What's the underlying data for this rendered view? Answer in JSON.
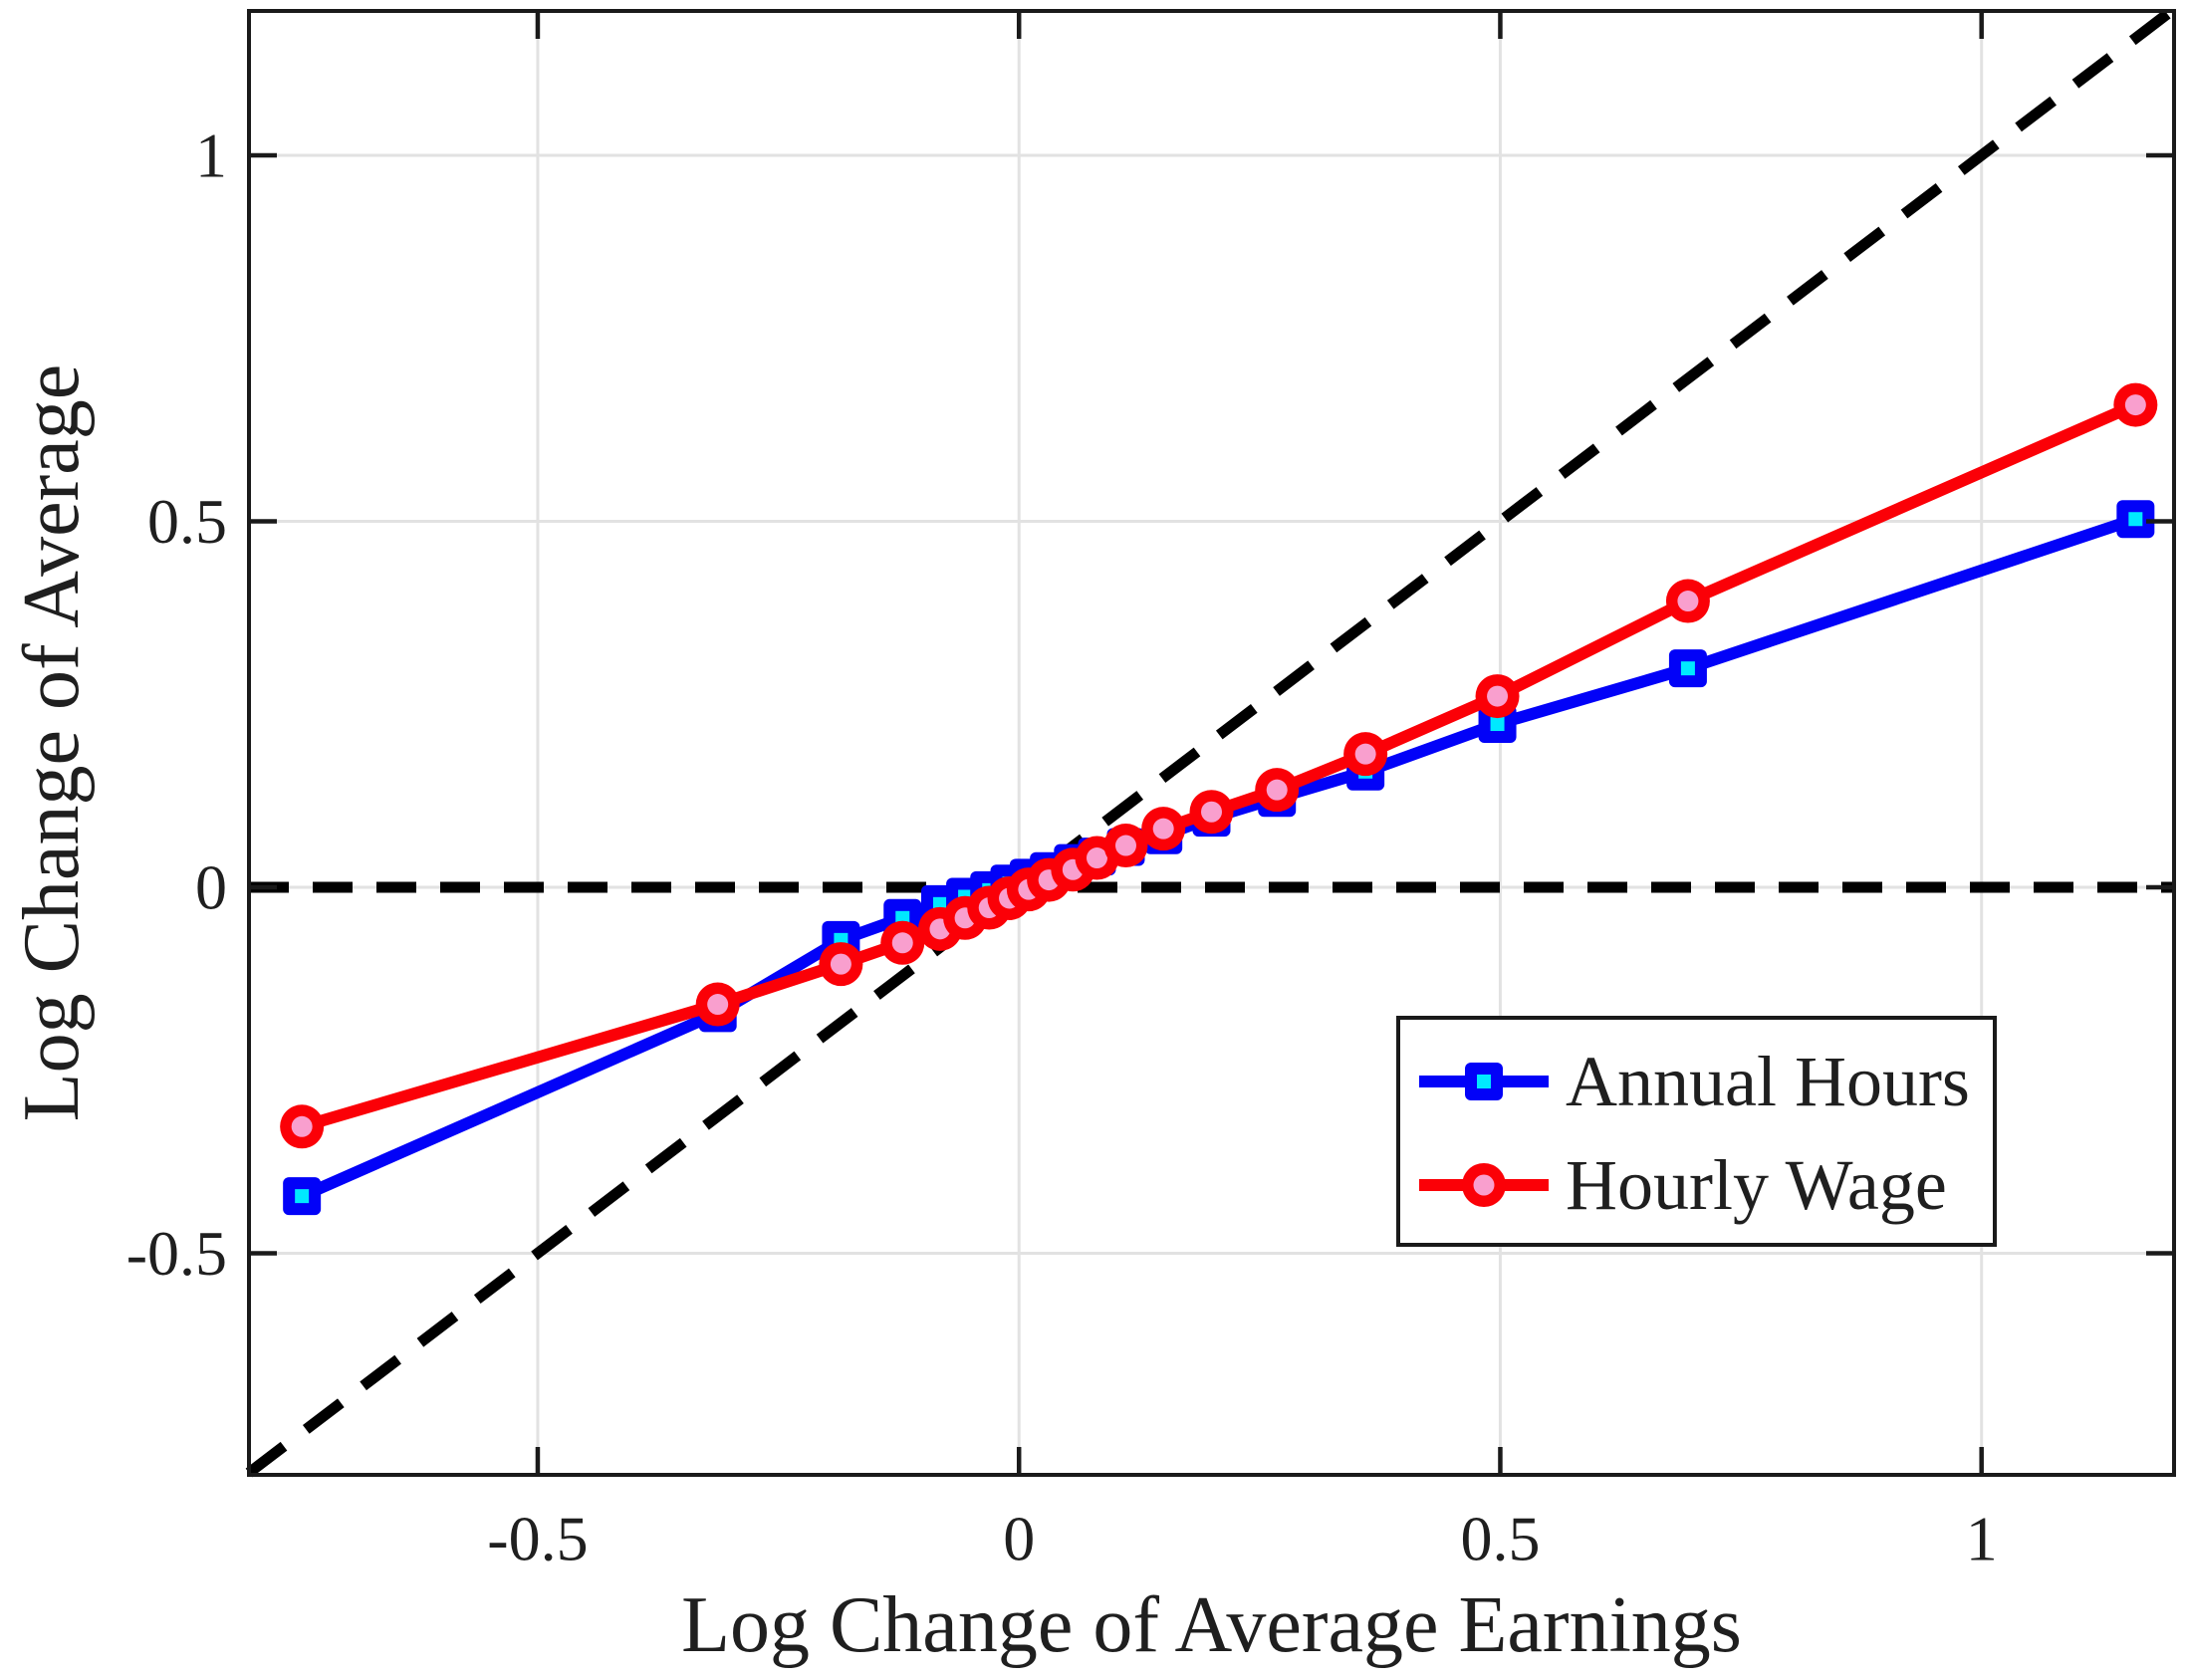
{
  "chart_data": {
    "type": "line",
    "title": "",
    "xlabel": "Log Change of Average Earnings",
    "ylabel": "Log Change of Average",
    "xlim": [
      -0.8,
      1.2
    ],
    "ylim": [
      -0.8028,
      1.1972
    ],
    "xticks": [
      -0.5,
      0,
      0.5,
      1
    ],
    "xtick_labels": [
      "-0.5",
      "0",
      "0.5",
      "1"
    ],
    "yticks": [
      -0.5,
      0,
      0.5,
      1
    ],
    "ytick_labels": [
      "-0.5",
      "0",
      "0.5",
      "1"
    ],
    "grid": true,
    "grid_color": "#e2e2e2",
    "axis_color": "#1a1a1a",
    "text_color": "#1f1f1f",
    "background": "#ffffff",
    "legend_position": "inside-middle-right",
    "reference_lines": [
      {
        "name": "diagonal-45-line",
        "equation": "y = x",
        "style": "dashed",
        "color": "#000000"
      },
      {
        "name": "zero-line",
        "equation": "y = 0",
        "style": "dashed",
        "color": "#000000"
      }
    ],
    "x": [
      -0.745,
      -0.313,
      -0.185,
      -0.121,
      -0.082,
      -0.056,
      -0.031,
      -0.01,
      0.01,
      0.031,
      0.056,
      0.081,
      0.111,
      0.15,
      0.2,
      0.268,
      0.36,
      0.497,
      0.695,
      1.16
    ],
    "series": [
      {
        "name": "Annual Hours",
        "marker": "square",
        "line_color": "#0202f8",
        "marker_face": "#00e9ff",
        "values": [
          -0.422,
          -0.172,
          -0.072,
          -0.042,
          -0.023,
          -0.013,
          -0.004,
          0.005,
          0.013,
          0.022,
          0.033,
          0.042,
          0.055,
          0.071,
          0.095,
          0.122,
          0.158,
          0.223,
          0.299,
          0.503
        ]
      },
      {
        "name": "Hourly Wage",
        "marker": "circle",
        "line_color": "#fb0007",
        "marker_face": "#f99fce",
        "values": [
          -0.327,
          -0.16,
          -0.105,
          -0.076,
          -0.057,
          -0.042,
          -0.028,
          -0.015,
          -0.003,
          0.01,
          0.024,
          0.04,
          0.057,
          0.08,
          0.103,
          0.133,
          0.182,
          0.261,
          0.391,
          0.659
        ]
      }
    ]
  }
}
